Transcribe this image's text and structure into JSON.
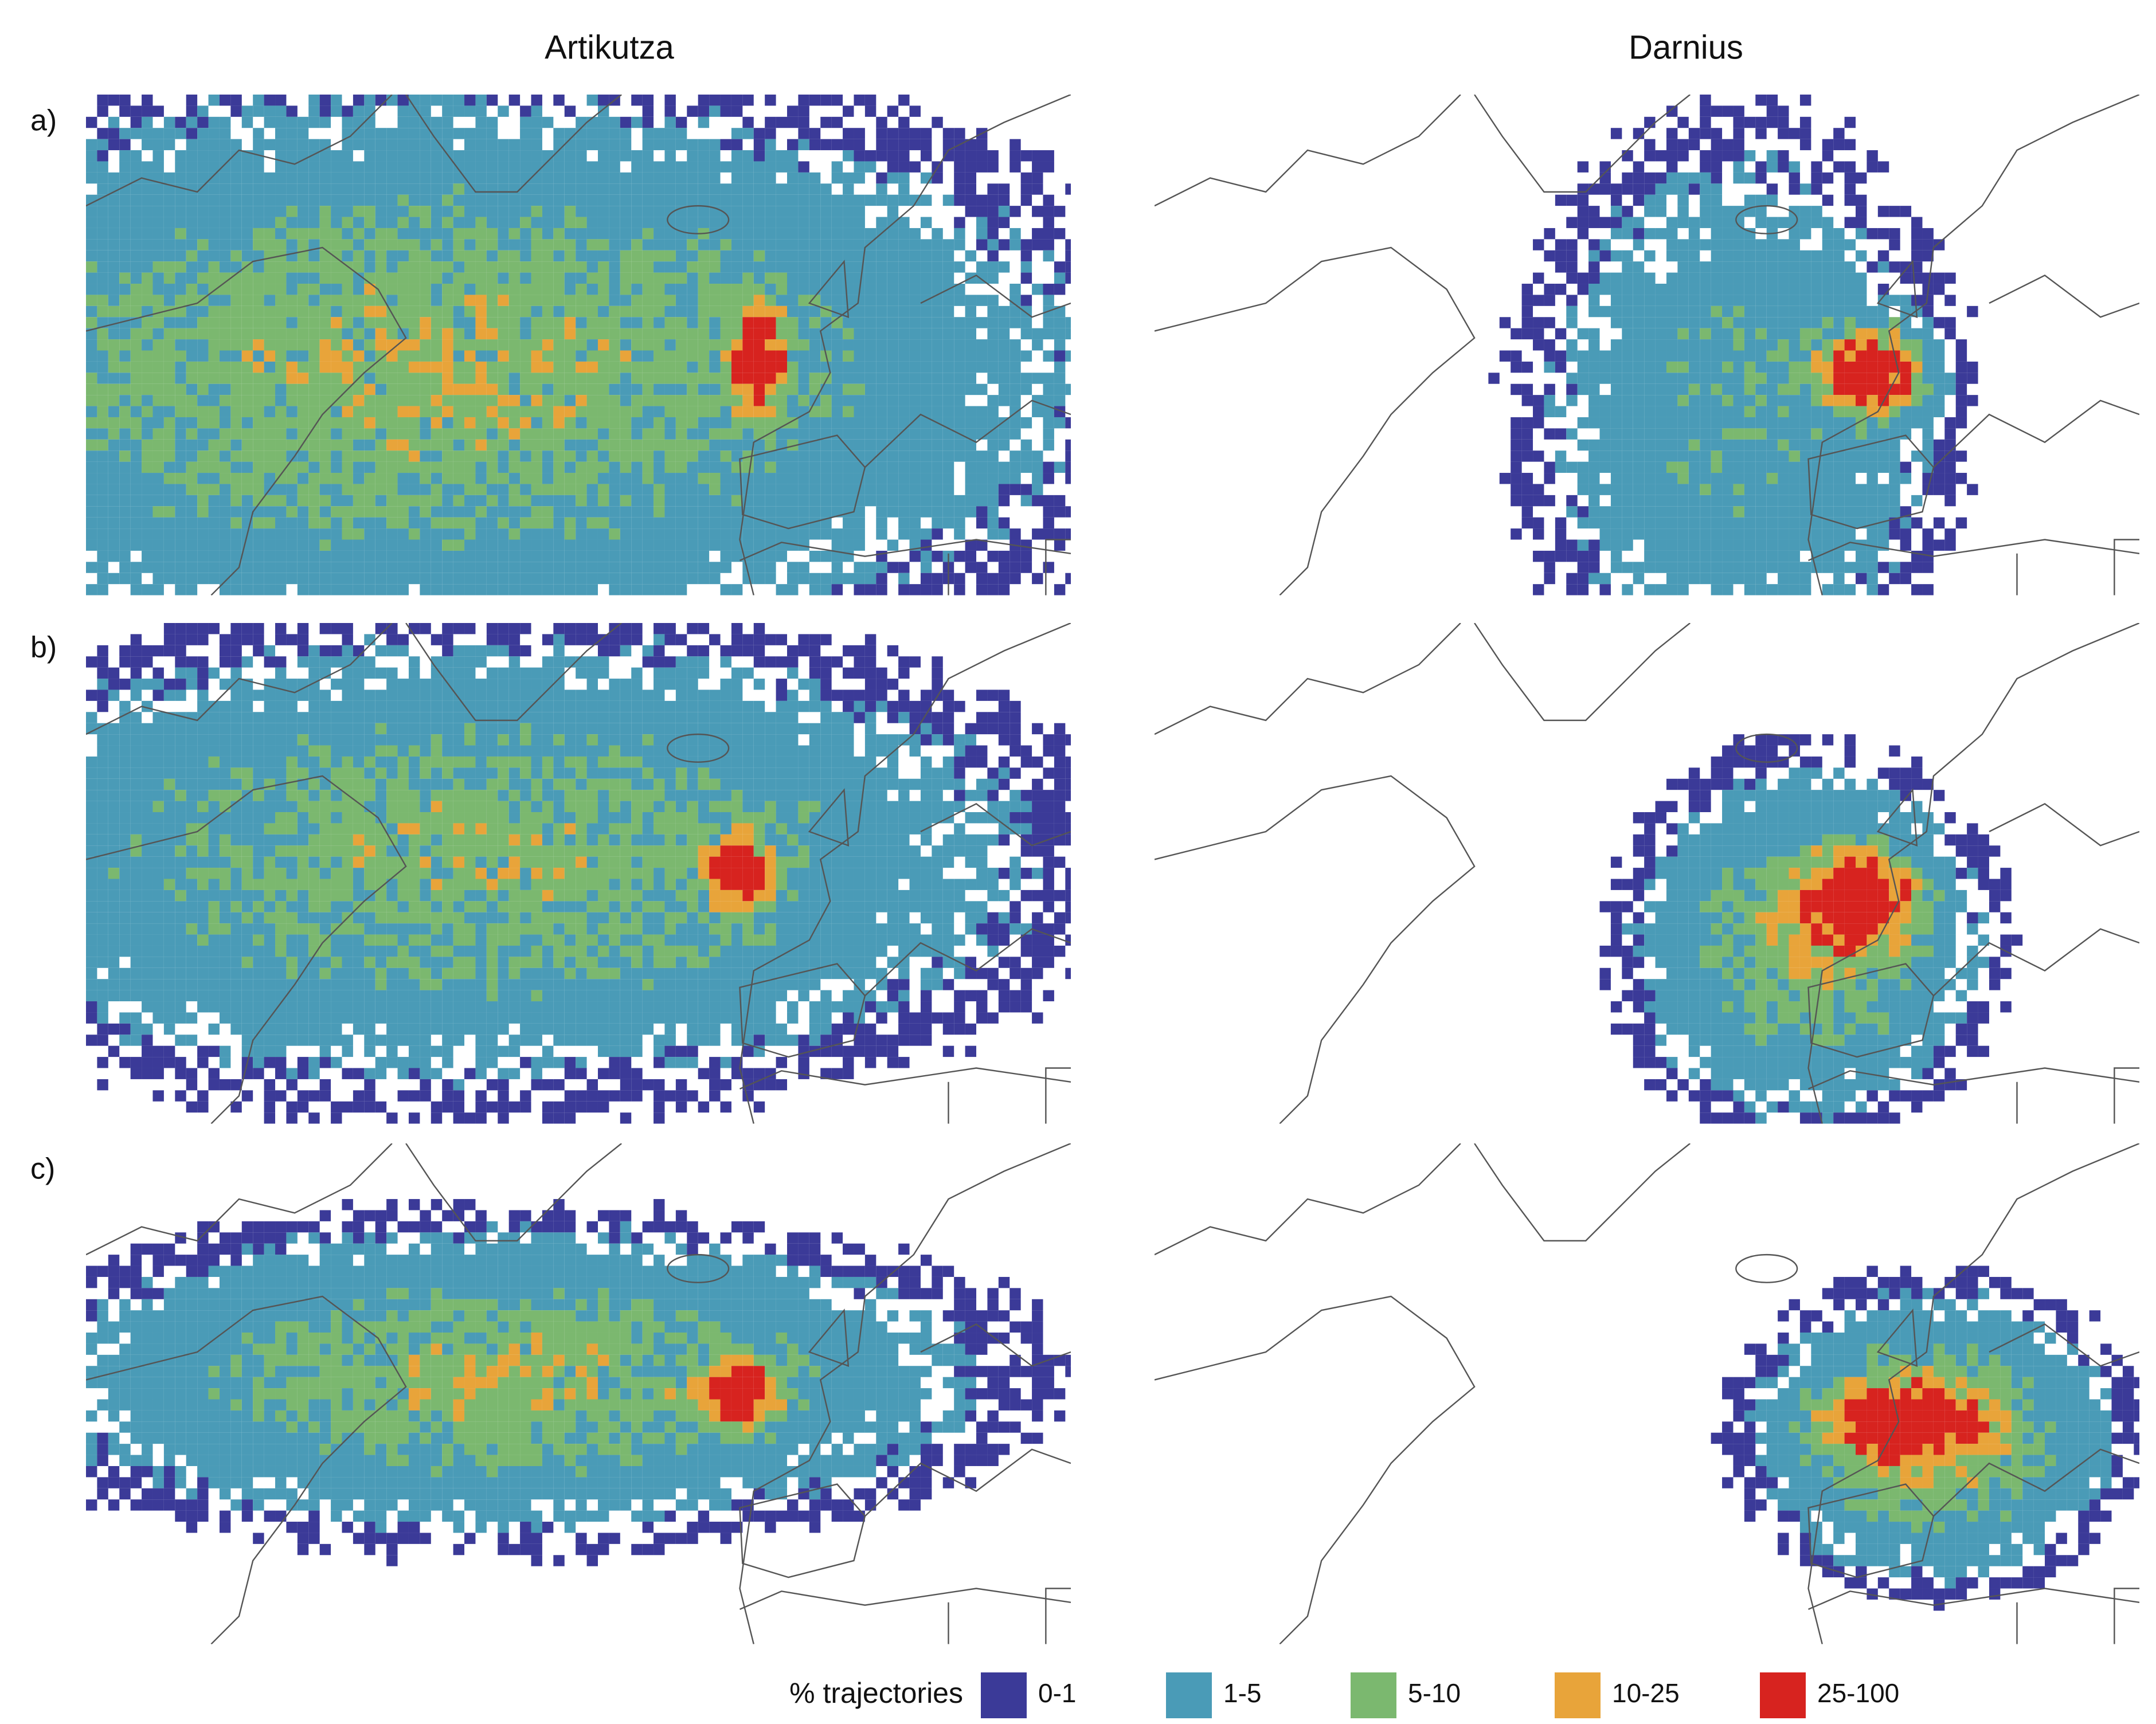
{
  "columns": [
    "Artikutza",
    "Darnius"
  ],
  "rows": [
    "a)",
    "b)",
    "c)"
  ],
  "legend": {
    "title": "% trajectories",
    "items": [
      {
        "label": "0-1",
        "color": "#3b3a98"
      },
      {
        "label": "1-5",
        "color": "#4a9bb7"
      },
      {
        "label": "5-10",
        "color": "#7bb86f"
      },
      {
        "label": "10-25",
        "color": "#e8a43a"
      },
      {
        "label": "25-100",
        "color": "#d7231f"
      }
    ]
  }
}
